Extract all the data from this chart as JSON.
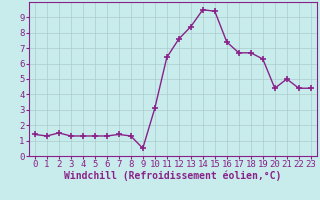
{
  "x": [
    0,
    1,
    2,
    3,
    4,
    5,
    6,
    7,
    8,
    9,
    10,
    11,
    12,
    13,
    14,
    15,
    16,
    17,
    18,
    19,
    20,
    21,
    22,
    23
  ],
  "y": [
    1.4,
    1.3,
    1.5,
    1.3,
    1.3,
    1.3,
    1.3,
    1.4,
    1.3,
    0.5,
    3.1,
    6.4,
    7.6,
    8.4,
    9.5,
    9.4,
    7.4,
    6.7,
    6.7,
    6.3,
    4.4,
    5.0,
    4.4,
    4.4
  ],
  "line_color": "#882288",
  "marker": "+",
  "marker_size": 4,
  "marker_lw": 1.2,
  "line_width": 1.0,
  "bg_color": "#c8ecec",
  "grid_color": "#aacccc",
  "xlabel": "Windchill (Refroidissement éolien,°C)",
  "xlim": [
    -0.5,
    23.5
  ],
  "ylim": [
    0,
    10
  ],
  "xticks": [
    0,
    1,
    2,
    3,
    4,
    5,
    6,
    7,
    8,
    9,
    10,
    11,
    12,
    13,
    14,
    15,
    16,
    17,
    18,
    19,
    20,
    21,
    22,
    23
  ],
  "yticks": [
    0,
    1,
    2,
    3,
    4,
    5,
    6,
    7,
    8,
    9
  ],
  "xlabel_fontsize": 7,
  "tick_fontsize": 6.5,
  "label_color": "#882288",
  "spine_color": "#882288"
}
